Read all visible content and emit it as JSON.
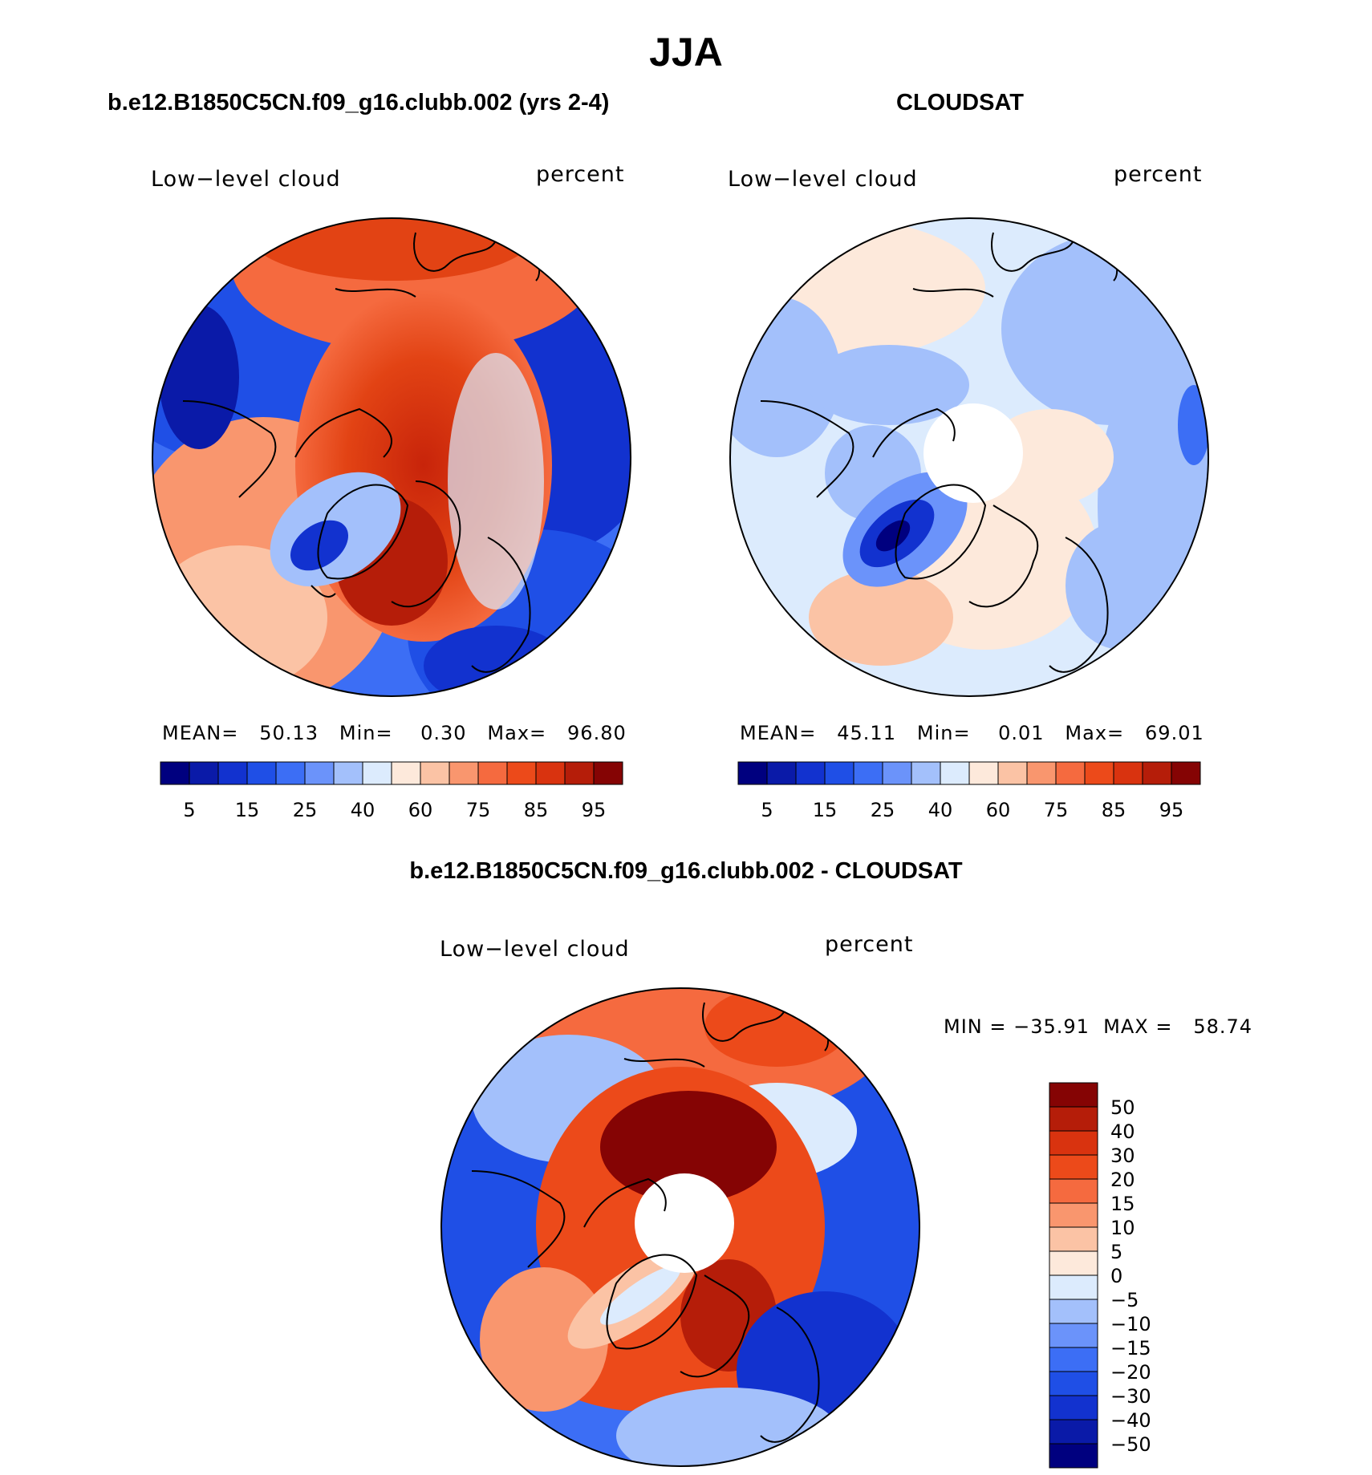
{
  "title": "JJA",
  "panels": [
    {
      "id": "model",
      "title": "b.e12.B1850C5CN.f09_g16.clubb.002 (yrs 2-4)",
      "variable": "Low−level cloud",
      "units": "percent",
      "stats": {
        "mean_label": "MEAN=",
        "mean": "50.13",
        "min_label": "Min=",
        "min": "0.30",
        "max_label": "Max=",
        "max": "96.80"
      }
    },
    {
      "id": "obs",
      "title": "CLOUDSAT",
      "variable": "Low−level cloud",
      "units": "percent",
      "stats": {
        "mean_label": "MEAN=",
        "mean": "45.11",
        "min_label": "Min=",
        "min": "0.01",
        "max_label": "Max=",
        "max": "69.01"
      }
    },
    {
      "id": "diff",
      "title": "b.e12.B1850C5CN.f09_g16.clubb.002 - CLOUDSAT",
      "variable": "Low−level cloud",
      "units": "percent",
      "minmax": "MIN = −35.91  MAX =   58.74"
    }
  ],
  "colorbar_abs": {
    "colors": [
      "#00007f",
      "#0a1aa8",
      "#1232cf",
      "#1f4fe6",
      "#3c6ef5",
      "#6b93fa",
      "#a3c0fb",
      "#dcebfd",
      "#fde9db",
      "#fbc3a5",
      "#f9966e",
      "#f56a3f",
      "#ec4a1a",
      "#d9330f",
      "#b51d09",
      "#850404"
    ],
    "labels": [
      "5",
      "15",
      "25",
      "40",
      "60",
      "75",
      "85",
      "95"
    ]
  },
  "colorbar_diff": {
    "colors": [
      "#00007f",
      "#0a1aa8",
      "#1232cf",
      "#1f4fe6",
      "#3c6ef5",
      "#6b93fa",
      "#a3c0fb",
      "#dcebfd",
      "#fde9db",
      "#fbc3a5",
      "#f9966e",
      "#f56a3f",
      "#ec4a1a",
      "#d9330f",
      "#b51d09",
      "#850404"
    ],
    "labels": [
      "−50",
      "−40",
      "−30",
      "−20",
      "−15",
      "−10",
      "−5",
      "0",
      "5",
      "10",
      "15",
      "20",
      "30",
      "40",
      "50"
    ]
  }
}
